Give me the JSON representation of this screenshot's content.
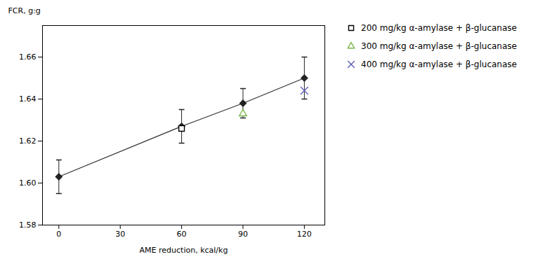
{
  "chart_data": {
    "type": "scatter",
    "xlabel": "AME reduction, kcal/kg",
    "ylabel": "FCR, g:g",
    "xlim": [
      -8,
      130
    ],
    "ylim": [
      1.58,
      1.675
    ],
    "xticks": [
      0,
      30,
      60,
      90,
      120
    ],
    "yticks": [
      1.58,
      {
        "value": 1.6,
        "label": "1.60"
      },
      1.62,
      1.64,
      1.66
    ],
    "grid": false,
    "legend": "right",
    "series": [
      {
        "type": "line",
        "color": "#333333",
        "x": [
          0,
          60,
          90,
          120
        ],
        "values": [
          1.603,
          1.627,
          1.638,
          1.65
        ]
      },
      {
        "type": "scatter",
        "marker": "diamond",
        "color": "#222222",
        "x": [
          0,
          60,
          90,
          120
        ],
        "values": [
          1.603,
          1.627,
          1.638,
          1.65
        ],
        "errors": [
          0.008,
          0.008,
          0.007,
          0.01
        ]
      },
      {
        "type": "scatter",
        "name": "200 mg/kg α-amylase + β-glucanase",
        "marker": "open_square",
        "color": "#000000",
        "x": [
          60
        ],
        "values": [
          1.626
        ]
      },
      {
        "type": "scatter",
        "name": "300 mg/kg α-amylase + β-glucanase",
        "marker": "open_triangle",
        "color": "#7ab648",
        "x": [
          90
        ],
        "values": [
          1.633
        ]
      },
      {
        "type": "scatter",
        "name": "400 mg/kg α-amylase + β-glucanase",
        "marker": "x",
        "color": "#6060bb",
        "x": [
          120
        ],
        "values": [
          1.644
        ]
      }
    ]
  }
}
